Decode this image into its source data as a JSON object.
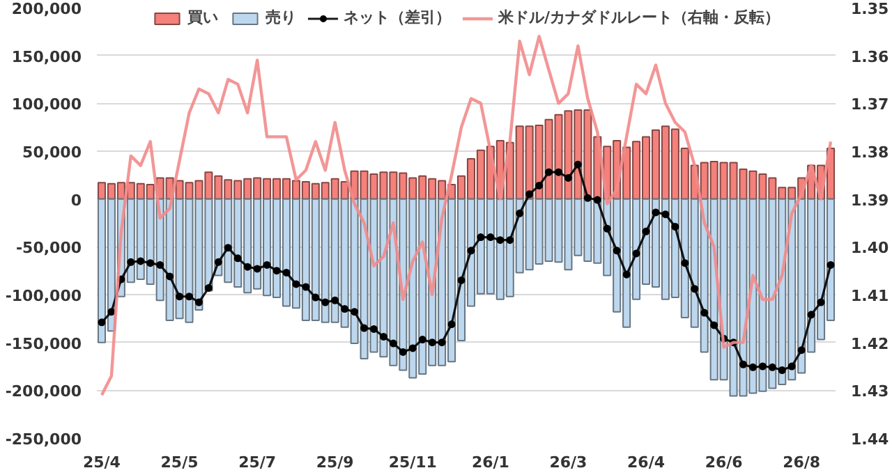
{
  "chart_data": {
    "type": "bar",
    "stacked": true,
    "grid": "y",
    "legend": "top",
    "categories": [
      "25/4",
      null,
      null,
      null,
      null,
      null,
      null,
      null,
      "25/5",
      null,
      null,
      null,
      null,
      null,
      null,
      null,
      "25/7",
      null,
      null,
      null,
      null,
      null,
      null,
      null,
      "25/9",
      null,
      null,
      null,
      null,
      null,
      null,
      null,
      "25/11",
      null,
      null,
      null,
      null,
      null,
      null,
      null,
      "26/1",
      null,
      null,
      null,
      null,
      null,
      null,
      null,
      "26/3",
      null,
      null,
      null,
      null,
      null,
      null,
      null,
      "26/4",
      null,
      null,
      null,
      null,
      null,
      null,
      null,
      "26/6",
      null,
      null,
      null,
      null,
      null,
      null,
      null,
      "26/8",
      null,
      null,
      null
    ],
    "series": [
      {
        "name": "買い",
        "color": "#f4817b",
        "values": [
          17000,
          16000,
          17000,
          17000,
          16000,
          15000,
          22000,
          22000,
          19000,
          17000,
          19000,
          28000,
          24000,
          20000,
          19000,
          21000,
          22000,
          21000,
          21000,
          21000,
          19000,
          18000,
          16000,
          17000,
          21000,
          18000,
          29000,
          29000,
          26000,
          28000,
          28000,
          27000,
          22000,
          24000,
          21000,
          19000,
          15000,
          24000,
          42000,
          51000,
          55000,
          61000,
          59000,
          76000,
          76000,
          77000,
          83000,
          88000,
          92000,
          93000,
          93000,
          65000,
          55000,
          61000,
          54000,
          60000,
          65000,
          72000,
          76000,
          73000,
          53000,
          35000,
          38000,
          39000,
          38000,
          38000,
          31000,
          29000,
          26000,
          22000,
          12000,
          12000,
          22000,
          35000,
          35000,
          53000
        ]
      },
      {
        "name": "売り",
        "color": "#bdd7ee",
        "values": [
          -150000,
          -138000,
          -102000,
          -87000,
          -84000,
          -89000,
          -106000,
          -127000,
          -125000,
          -129000,
          -116000,
          -96000,
          -80000,
          -87000,
          -92000,
          -98000,
          -94000,
          -101000,
          -103000,
          -112000,
          -114000,
          -127000,
          -127000,
          -129000,
          -129000,
          -134000,
          -151000,
          -167000,
          -160000,
          -165000,
          -174000,
          -179000,
          -187000,
          -183000,
          -174000,
          -174000,
          -170000,
          -148000,
          -112000,
          -99000,
          -99000,
          -105000,
          -102000,
          -77000,
          -74000,
          -68000,
          -65000,
          -66000,
          -74000,
          -59000,
          -65000,
          -67000,
          -80000,
          -118000,
          -134000,
          -105000,
          -89000,
          -92000,
          -105000,
          -103000,
          -124000,
          -134000,
          -160000,
          -189000,
          -189000,
          -206000,
          -206000,
          -203000,
          -201000,
          -198000,
          -194000,
          -189000,
          -182000,
          -160000,
          -147000,
          -127000
        ]
      },
      {
        "name": "ネット（差引）",
        "type": "line",
        "color": "#000000",
        "marker": "circle",
        "values": [
          -129000,
          -118000,
          -84000,
          -66000,
          -65000,
          -67000,
          -69000,
          -81000,
          -102000,
          -102000,
          -108000,
          -93000,
          -66000,
          -51000,
          -62000,
          -71000,
          -73000,
          -69000,
          -75000,
          -77000,
          -89000,
          -92000,
          -103000,
          -108000,
          -106000,
          -115000,
          -118000,
          -135000,
          -136000,
          -144000,
          -151000,
          -160000,
          -156000,
          -147000,
          -150000,
          -150000,
          -131000,
          -85000,
          -54000,
          -40000,
          -40000,
          -43000,
          -43000,
          -15000,
          5000,
          14000,
          28000,
          28000,
          22000,
          36000,
          1000,
          -1000,
          -31000,
          -54000,
          -79000,
          -57000,
          -34000,
          -14000,
          -16000,
          -29000,
          -67000,
          -94000,
          -119000,
          -132000,
          -146000,
          -150000,
          -173000,
          -176000,
          -175000,
          -176000,
          -179000,
          -175000,
          -158000,
          -121000,
          -108000,
          -69000
        ]
      },
      {
        "name": "米ドル/カナダドルレート（右軸・反転）",
        "type": "line",
        "axis": "y2",
        "color": "#f28b8b",
        "values": [
          1.431,
          1.427,
          1.397,
          1.381,
          1.383,
          1.378,
          1.394,
          1.392,
          1.382,
          1.372,
          1.367,
          1.368,
          1.372,
          1.365,
          1.366,
          1.372,
          1.361,
          1.377,
          1.377,
          1.377,
          1.386,
          1.384,
          1.378,
          1.384,
          1.374,
          1.384,
          1.391,
          1.395,
          1.404,
          1.402,
          1.395,
          1.411,
          1.403,
          1.399,
          1.41,
          1.394,
          1.385,
          1.375,
          1.369,
          1.37,
          1.38,
          1.39,
          1.378,
          1.357,
          1.364,
          1.356,
          1.363,
          1.37,
          1.368,
          1.358,
          1.369,
          1.376,
          1.391,
          1.388,
          1.377,
          1.366,
          1.368,
          1.362,
          1.37,
          1.374,
          1.376,
          1.383,
          1.395,
          1.4,
          1.421,
          1.42,
          1.42,
          1.406,
          1.411,
          1.411,
          1.406,
          1.393,
          1.389,
          1.383,
          1.39,
          1.378
        ]
      }
    ],
    "ylim": [
      -250000,
      200000
    ],
    "yticks": [
      {
        "value": -250000,
        "label": "-250,000"
      },
      {
        "value": -200000,
        "label": "-200,000"
      },
      {
        "value": -150000,
        "label": "-150,000"
      },
      {
        "value": -100000,
        "label": "-100,000"
      },
      {
        "value": -50000,
        "label": "-50,000"
      },
      0,
      {
        "value": 50000,
        "label": "50,000"
      },
      {
        "value": 100000,
        "label": "100,000"
      },
      {
        "value": 150000,
        "label": "150,000"
      },
      {
        "value": 200000,
        "label": "200,000"
      }
    ],
    "y2lim": [
      1.44,
      1.35
    ],
    "y2ticks": [
      1.35,
      1.36,
      1.37,
      1.38,
      1.39,
      {
        "value": 1.4,
        "label": "1.40"
      },
      1.41,
      1.42,
      1.43,
      1.44
    ]
  }
}
